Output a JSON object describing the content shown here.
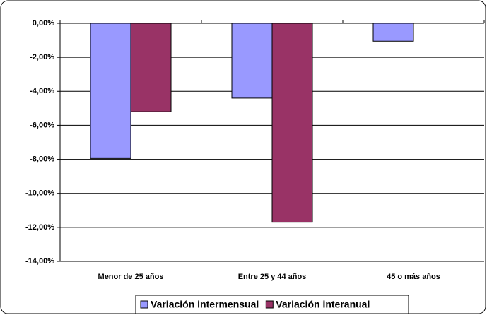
{
  "chart_data": {
    "type": "bar",
    "categories": [
      "Menor de 25 años",
      "Entre 25 y 44 años",
      "45 o más años"
    ],
    "series": [
      {
        "name": "Variación intermensual",
        "color": "#9999ff",
        "values": [
          -7.95,
          -4.4,
          -1.05
        ]
      },
      {
        "name": "Variación interanual",
        "color": "#993366",
        "values": [
          -5.2,
          -11.7,
          null
        ]
      }
    ],
    "ylim": [
      -14,
      0
    ],
    "yticks": [
      {
        "value": 0,
        "label": "0,00%"
      },
      {
        "value": -2,
        "label": "-2,00%"
      },
      {
        "value": -4,
        "label": "-4,00%"
      },
      {
        "value": -6,
        "label": "-6,00%"
      },
      {
        "value": -8,
        "label": "-8,00%"
      },
      {
        "value": -10,
        "label": "-10,00%"
      },
      {
        "value": -12,
        "label": "-12,00%"
      },
      {
        "value": -14,
        "label": "-14,00%"
      }
    ],
    "grid": true,
    "legend": "bottom"
  }
}
